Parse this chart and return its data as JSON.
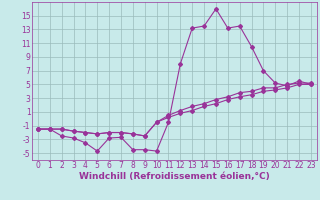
{
  "xlabel": "Windchill (Refroidissement éolien,°C)",
  "x_hours": [
    0,
    1,
    2,
    3,
    4,
    5,
    6,
    7,
    8,
    9,
    10,
    11,
    12,
    13,
    14,
    15,
    16,
    17,
    18,
    19,
    20,
    21,
    22,
    23
  ],
  "line1": [
    -1.5,
    -1.5,
    -2.5,
    -2.8,
    -3.5,
    -4.7,
    -2.8,
    -2.7,
    -4.5,
    -4.5,
    -4.7,
    -0.5,
    8.0,
    13.2,
    13.5,
    16.0,
    13.2,
    13.5,
    10.5,
    7.0,
    5.2,
    4.8,
    5.5,
    5.0
  ],
  "line2": [
    -1.5,
    -1.5,
    -1.5,
    -1.8,
    -2.0,
    -2.2,
    -2.0,
    -2.0,
    -2.2,
    -2.5,
    -0.5,
    0.2,
    0.8,
    1.2,
    1.8,
    2.2,
    2.8,
    3.2,
    3.5,
    4.0,
    4.2,
    4.5,
    5.0,
    5.0
  ],
  "line3": [
    -1.5,
    -1.5,
    -1.5,
    -1.8,
    -2.0,
    -2.2,
    -2.0,
    -2.0,
    -2.2,
    -2.5,
    -0.5,
    0.5,
    1.2,
    1.8,
    2.2,
    2.8,
    3.2,
    3.8,
    4.0,
    4.5,
    4.5,
    5.0,
    5.2,
    5.2
  ],
  "bg_color": "#c8eaea",
  "line_color": "#993399",
  "grid_color": "#9bbcbc",
  "ylim": [
    -6,
    17
  ],
  "yticks": [
    -5,
    -3,
    -1,
    1,
    3,
    5,
    7,
    9,
    11,
    13,
    15
  ],
  "marker": "D",
  "markersize": 2.0,
  "linewidth": 0.8,
  "xlabel_fontsize": 6.5,
  "tick_fontsize": 5.5,
  "font_color": "#993399"
}
